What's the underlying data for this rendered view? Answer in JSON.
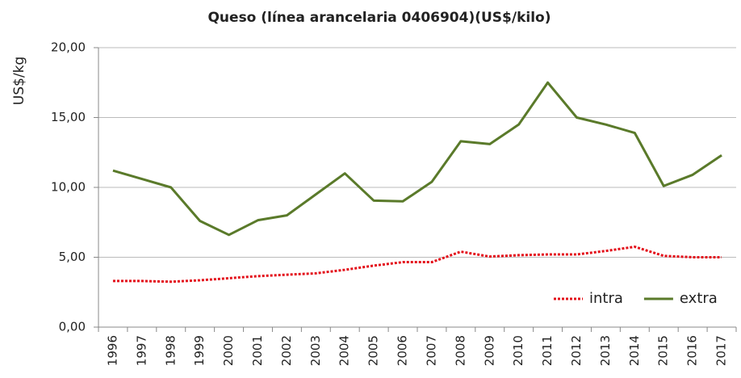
{
  "chart_data": {
    "type": "line",
    "title": "Queso (línea arancelaria 0406904)(US$/kilo)",
    "ylabel": "US$/kg",
    "categories": [
      "1996",
      "1997",
      "1998",
      "1999",
      "2000",
      "2001",
      "2002",
      "2003",
      "2004",
      "2005",
      "2006",
      "2007",
      "2008",
      "2009",
      "2010",
      "2011",
      "2012",
      "2013",
      "2014",
      "2015",
      "2016",
      "2017"
    ],
    "series": [
      {
        "name": "intra",
        "color": "#e3101a",
        "dash": "dotted",
        "values": [
          3.3,
          3.3,
          3.25,
          3.35,
          3.5,
          3.65,
          3.75,
          3.85,
          4.1,
          4.4,
          4.65,
          4.65,
          5.4,
          5.05,
          5.15,
          5.2,
          5.2,
          5.45,
          5.75,
          5.1,
          5.0,
          5.0
        ]
      },
      {
        "name": "extra",
        "color": "#5a7a2a",
        "dash": "solid",
        "values": [
          11.2,
          10.6,
          10.0,
          7.6,
          6.6,
          7.65,
          8.0,
          9.5,
          11.0,
          9.05,
          9.0,
          10.4,
          13.3,
          13.1,
          14.5,
          17.5,
          15.0,
          14.5,
          13.9,
          10.1,
          10.9,
          12.3
        ]
      }
    ],
    "ylim": [
      0,
      20
    ],
    "yticks": [
      {
        "value": 0,
        "label": "0,00"
      },
      {
        "value": 5,
        "label": "5,00"
      },
      {
        "value": 10,
        "label": "10,00"
      },
      {
        "value": 15,
        "label": "15,00"
      },
      {
        "value": 20,
        "label": "20,00"
      }
    ],
    "grid": true,
    "legend": "lower right"
  }
}
